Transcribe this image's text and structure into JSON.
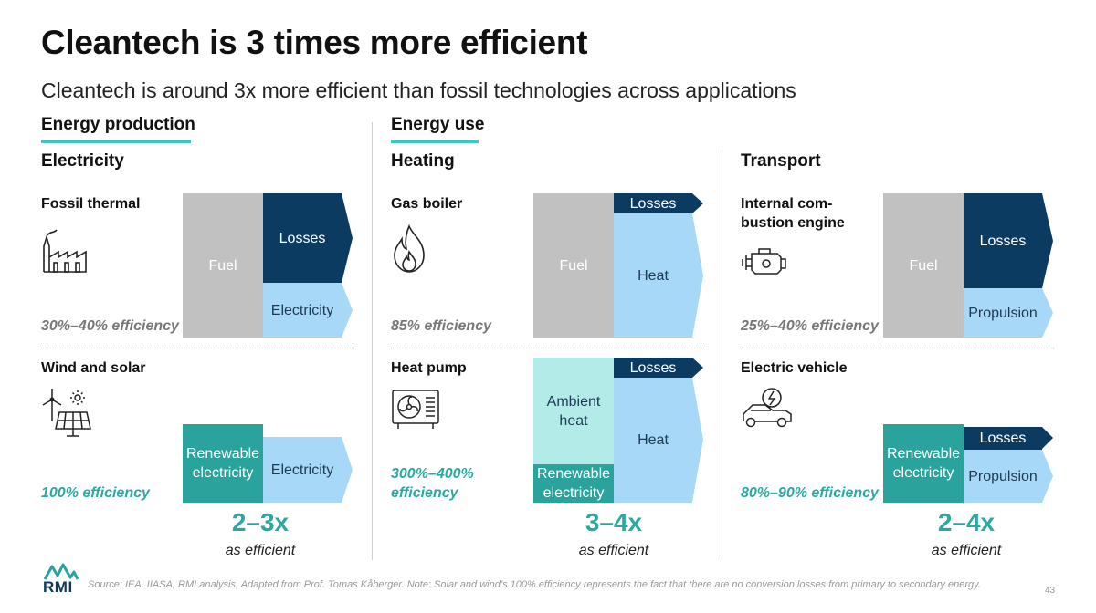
{
  "title": "Cleantech is 3 times more efficient",
  "subtitle": "Cleantech is around 3x more efficient than fossil technologies across applications",
  "sections": {
    "production": "Energy production",
    "use": "Energy use"
  },
  "columns": {
    "electricity": {
      "heading": "Electricity",
      "fossil": {
        "label": "Fossil thermal",
        "efficiency": "30%–40% efficiency",
        "fuel": "Fuel",
        "losses": "Losses",
        "output": "Electricity"
      },
      "clean": {
        "label": "Wind and solar",
        "efficiency": "100% efficiency",
        "input": "Renewable electricity",
        "output": "Electricity"
      },
      "multiplier": "2–3x",
      "multiplier_note": "as efficient"
    },
    "heating": {
      "heading": "Heating",
      "fossil": {
        "label": "Gas boiler",
        "efficiency": "85% efficiency",
        "fuel": "Fuel",
        "losses": "Losses",
        "output": "Heat"
      },
      "clean": {
        "label": "Heat pump",
        "efficiency": "300%–400% efficiency",
        "ambient": "Ambient heat",
        "input": "Renewable electricity",
        "losses": "Losses",
        "output": "Heat"
      },
      "multiplier": "3–4x",
      "multiplier_note": "as efficient"
    },
    "transport": {
      "heading": "Transport",
      "fossil": {
        "label": "Internal com- bustion engine",
        "efficiency": "25%–40% efficiency",
        "fuel": "Fuel",
        "losses": "Losses",
        "output": "Propulsion"
      },
      "clean": {
        "label": "Electric vehicle",
        "efficiency": "80%–90% efficiency",
        "input": "Renewable electricity",
        "losses": "Losses",
        "output": "Propulsion"
      },
      "multiplier": "2–4x",
      "multiplier_note": "as efficient"
    }
  },
  "logo_text": "RMI",
  "source": "Source: IEA, IIASA, RMI analysis, Adapted from Prof. Tomas Kåberger. Note: Solar and wind’s 100% efficiency represents the fact that there are no conversion losses from primary to secondary energy.",
  "page_number": "43",
  "colors": {
    "fuel": "#c1c1c1",
    "losses": "#0c3b61",
    "output": "#a8d8f8",
    "renewable": "#2aa39c",
    "ambient": "#b3ebe9",
    "accent": "#3cc7c0"
  },
  "icons": [
    "factory-icon",
    "flame-icon",
    "engine-icon",
    "wind-solar-icon",
    "heat-pump-icon",
    "electric-car-icon",
    "rmi-logo-icon"
  ]
}
